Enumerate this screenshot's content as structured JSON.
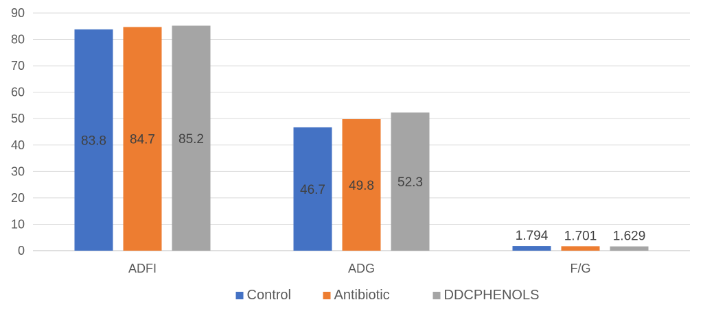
{
  "chart_data": {
    "type": "bar",
    "categories": [
      "ADFI",
      "ADG",
      "F/G"
    ],
    "series": [
      {
        "name": "Control",
        "values": [
          83.8,
          46.7,
          1.794
        ],
        "labels": [
          "83.8",
          "46.7",
          "1.794"
        ],
        "color": "#4472C4"
      },
      {
        "name": "Antibiotic",
        "values": [
          84.7,
          49.8,
          1.701
        ],
        "labels": [
          "84.7",
          "49.8",
          "1.701"
        ],
        "color": "#ED7D31"
      },
      {
        "name": "DDCPHENOLS",
        "values": [
          85.2,
          52.3,
          1.629
        ],
        "labels": [
          "85.2",
          "52.3",
          "1.629"
        ],
        "color": "#A5A5A5"
      }
    ],
    "ylim": [
      0,
      90
    ],
    "yticks": [
      0,
      10,
      20,
      30,
      40,
      50,
      60,
      70,
      80,
      90
    ],
    "grid": true,
    "legend_position": "bottom"
  }
}
